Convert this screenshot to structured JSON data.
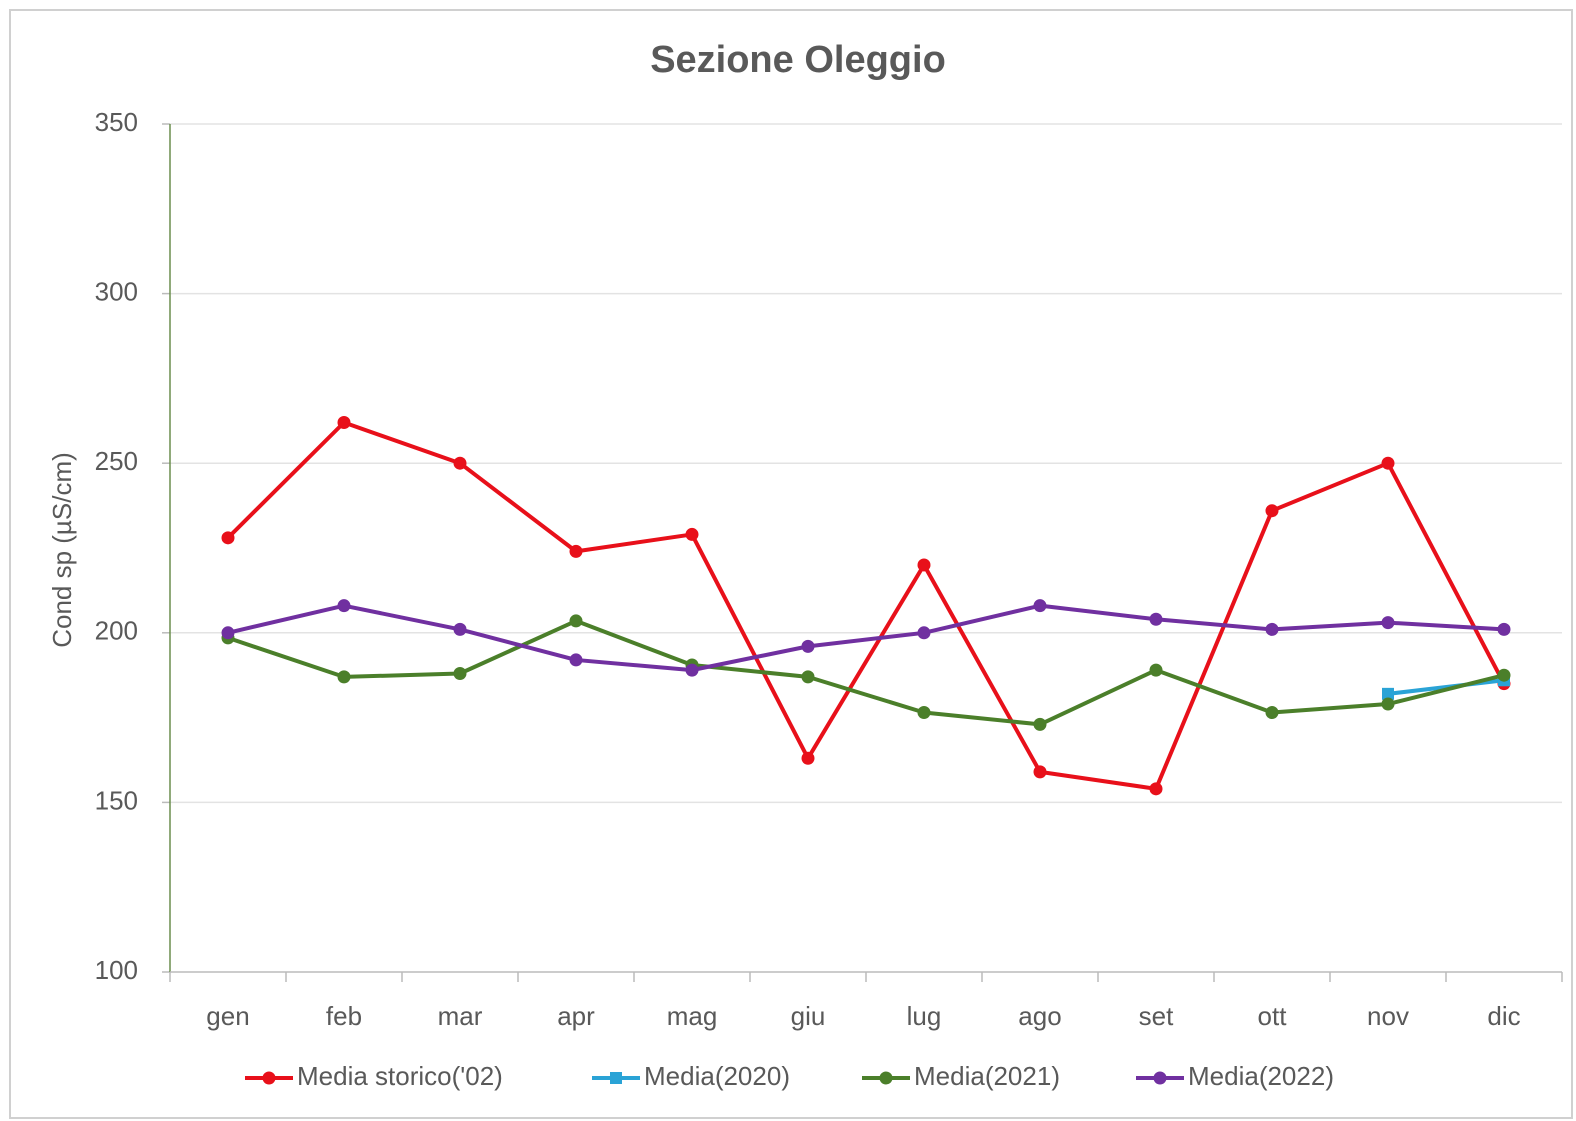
{
  "chart_data": {
    "type": "line",
    "title": "Sezione Oleggio",
    "y_label": "Cond sp (µS/cm)",
    "categories": [
      "gen",
      "feb",
      "mar",
      "apr",
      "mag",
      "giu",
      "lug",
      "ago",
      "set",
      "ott",
      "nov",
      "dic"
    ],
    "series": [
      {
        "name": "Media storico('02)",
        "color": "#e8101a",
        "marker": "circle",
        "values": [
          228,
          262,
          250,
          224,
          229,
          163,
          220,
          159,
          154,
          236,
          250,
          185
        ]
      },
      {
        "name": "Media(2020)",
        "color": "#2aa3d6",
        "marker": "square",
        "values": [
          null,
          null,
          null,
          null,
          null,
          null,
          null,
          null,
          null,
          null,
          182,
          186
        ]
      },
      {
        "name": "Media(2021)",
        "color": "#4b7f2a",
        "marker": "circle",
        "values": [
          198.5,
          187,
          188,
          203.5,
          190.5,
          187,
          176.5,
          173,
          189,
          176.5,
          179,
          187.5
        ]
      },
      {
        "name": "Media(2022)",
        "color": "#7030a0",
        "marker": "circle",
        "values": [
          200,
          208,
          201,
          192,
          189,
          196,
          200,
          208,
          204,
          201,
          203,
          201
        ]
      }
    ],
    "ylim": [
      100,
      350
    ],
    "yticks": [
      100,
      150,
      200,
      250,
      300,
      350
    ],
    "grid": true,
    "legend": "bottom"
  }
}
